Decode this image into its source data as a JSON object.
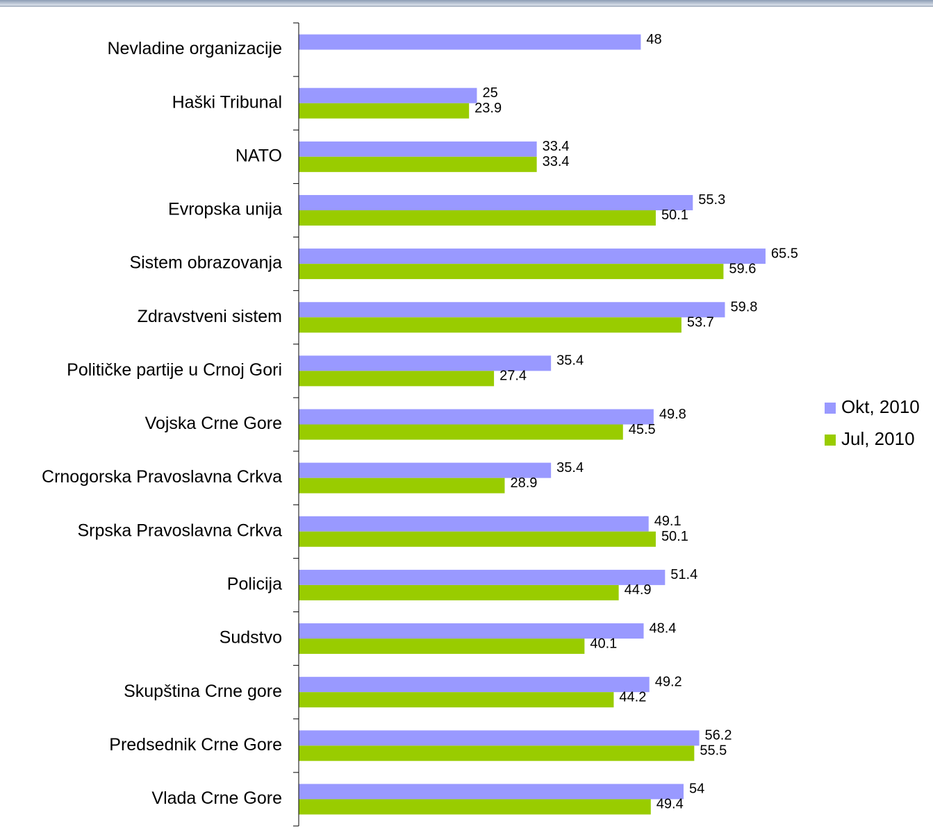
{
  "chart_data": {
    "type": "bar",
    "orientation": "horizontal",
    "categories": [
      "Nevladine organizacije",
      "Haški Tribunal",
      "NATO",
      "Evropska unija",
      "Sistem obrazovanja",
      "Zdravstveni sistem",
      "Političke partije u Crnoj Gori",
      "Vojska Crne Gore",
      "Crnogorska Pravoslavna Crkva",
      "Srpska Pravoslavna Crkva",
      "Policija",
      "Sudstvo",
      "Skupština Crne gore",
      "Predsednik Crne Gore",
      "Vlada Crne Gore"
    ],
    "series": [
      {
        "name": "Okt, 2010",
        "color": "#9999ff",
        "values": [
          48,
          25,
          33.4,
          55.3,
          65.5,
          59.8,
          35.4,
          49.8,
          35.4,
          49.1,
          51.4,
          48.4,
          49.2,
          56.2,
          54
        ]
      },
      {
        "name": "Jul, 2010",
        "color": "#99cc00",
        "values": [
          null,
          23.9,
          33.4,
          50.1,
          59.6,
          53.7,
          27.4,
          45.5,
          28.9,
          50.1,
          44.9,
          40.1,
          44.2,
          55.5,
          49.4
        ]
      }
    ],
    "xlim": [
      0,
      89
    ],
    "legend": "right"
  }
}
